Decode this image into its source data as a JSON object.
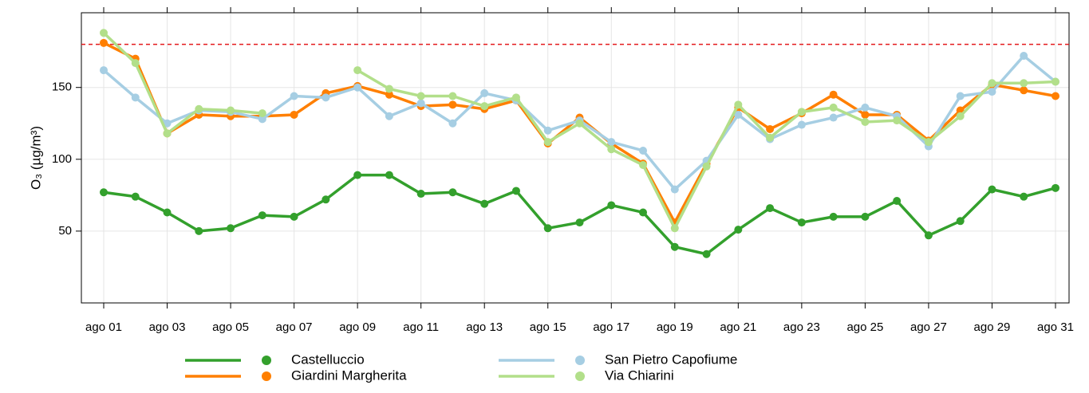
{
  "chart_data": {
    "type": "line",
    "ylabel": "O₃ (µg/m³)",
    "categories": [
      "ago 01",
      null,
      "ago 03",
      null,
      "ago 05",
      null,
      "ago 07",
      null,
      "ago 09",
      null,
      "ago 11",
      null,
      "ago 13",
      null,
      "ago 15",
      null,
      "ago 17",
      null,
      "ago 19",
      null,
      "ago 21",
      null,
      "ago 23",
      null,
      "ago 25",
      null,
      "ago 27",
      null,
      "ago 29",
      null,
      "ago 31"
    ],
    "series": [
      {
        "name": "Castelluccio",
        "color": "#33a02c",
        "values": [
          77,
          74,
          63,
          50,
          52,
          61,
          60,
          72,
          89,
          89,
          76,
          77,
          69,
          78,
          52,
          56,
          68,
          63,
          39,
          34,
          51,
          66,
          56,
          60,
          60,
          71,
          47,
          57,
          79,
          74,
          80
        ]
      },
      {
        "name": "Giardini Margherita",
        "color": "#ff7f00",
        "values": [
          181,
          170,
          118,
          131,
          130,
          130,
          131,
          146,
          151,
          145,
          137,
          138,
          135,
          141,
          111,
          129,
          111,
          97,
          56,
          97,
          136,
          121,
          132,
          145,
          131,
          131,
          113,
          134,
          152,
          148,
          144
        ]
      },
      {
        "name": "San Pietro Capofiume",
        "color": "#a6cee3",
        "values": [
          162,
          143,
          125,
          134,
          133,
          128,
          144,
          143,
          150,
          130,
          139,
          125,
          146,
          141,
          120,
          127,
          112,
          106,
          79,
          99,
          131,
          114,
          124,
          129,
          136,
          130,
          109,
          144,
          147,
          172,
          154
        ]
      },
      {
        "name": "Via Chiarini",
        "color": "#b2df8a",
        "values": [
          188,
          167,
          118,
          135,
          134,
          132,
          null,
          null,
          162,
          149,
          144,
          144,
          137,
          143,
          112,
          125,
          107,
          96,
          52,
          95,
          138,
          115,
          133,
          136,
          126,
          127,
          112,
          130,
          153,
          153,
          154
        ]
      }
    ],
    "threshold": 180,
    "threshold_color": "#e31a1c",
    "ylim": [
      0,
      202
    ],
    "yticks": [
      50,
      100,
      150
    ],
    "grid": true
  }
}
